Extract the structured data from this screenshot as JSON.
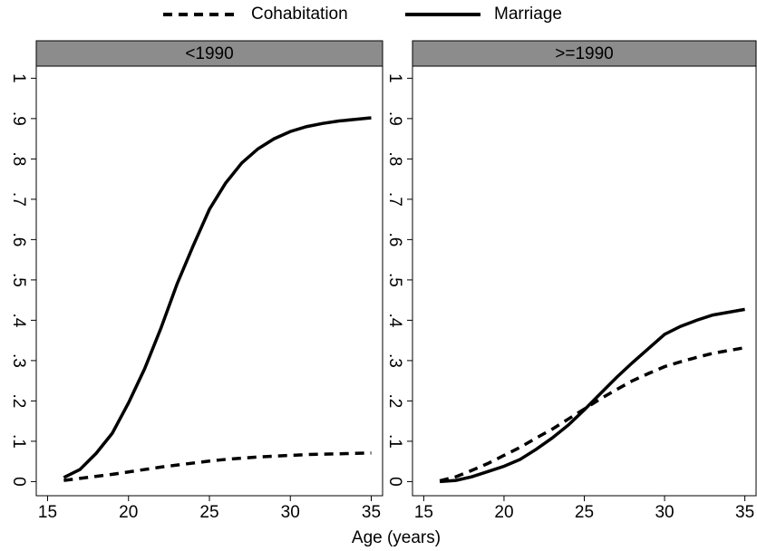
{
  "chart_data": [
    {
      "type": "line",
      "title": "<1990",
      "xlabel": "Age (years)",
      "x": [
        16,
        17,
        18,
        19,
        20,
        21,
        22,
        23,
        24,
        25,
        26,
        27,
        28,
        29,
        30,
        31,
        32,
        33,
        34,
        35
      ],
      "series": [
        {
          "name": "Cohabitation",
          "color": "#000000",
          "style": "dashed",
          "values": [
            0.003,
            0.008,
            0.013,
            0.018,
            0.024,
            0.03,
            0.036,
            0.041,
            0.046,
            0.051,
            0.055,
            0.058,
            0.061,
            0.063,
            0.065,
            0.067,
            0.068,
            0.069,
            0.07,
            0.071
          ]
        },
        {
          "name": "Marriage",
          "color": "#000000",
          "style": "solid",
          "values": [
            0.01,
            0.03,
            0.07,
            0.12,
            0.195,
            0.28,
            0.38,
            0.49,
            0.585,
            0.675,
            0.74,
            0.79,
            0.825,
            0.85,
            0.868,
            0.88,
            0.888,
            0.894,
            0.898,
            0.902
          ]
        }
      ],
      "xlim": [
        14.3,
        35.7
      ],
      "ylim": [
        -0.035,
        1.03
      ],
      "xticks": [
        15,
        20,
        25,
        30,
        35
      ],
      "yticks": [
        0,
        {
          "value": 0.1,
          "label": ".1"
        },
        {
          "value": 0.2,
          "label": ".2"
        },
        {
          "value": 0.3,
          "label": ".3"
        },
        {
          "value": 0.4,
          "label": ".4"
        },
        {
          "value": 0.5,
          "label": ".5"
        },
        {
          "value": 0.6,
          "label": ".6"
        },
        {
          "value": 0.7,
          "label": ".7"
        },
        {
          "value": 0.8,
          "label": ".8"
        },
        {
          "value": 0.9,
          "label": ".9"
        },
        1
      ]
    },
    {
      "type": "line",
      "title": ">=1990",
      "x": [
        16,
        17,
        18,
        19,
        20,
        21,
        22,
        23,
        24,
        25,
        26,
        27,
        28,
        29,
        30,
        31,
        32,
        33,
        34,
        35
      ],
      "series": [
        {
          "name": "Cohabitation",
          "color": "#000000",
          "style": "dashed",
          "values": [
            0.002,
            0.012,
            0.028,
            0.045,
            0.065,
            0.085,
            0.108,
            0.13,
            0.155,
            0.18,
            0.205,
            0.228,
            0.25,
            0.268,
            0.285,
            0.297,
            0.308,
            0.318,
            0.325,
            0.332
          ]
        },
        {
          "name": "Marriage",
          "color": "#000000",
          "style": "solid",
          "values": [
            0.0,
            0.003,
            0.012,
            0.025,
            0.038,
            0.055,
            0.08,
            0.108,
            0.14,
            0.178,
            0.218,
            0.258,
            0.295,
            0.33,
            0.365,
            0.385,
            0.4,
            0.413,
            0.42,
            0.427
          ]
        }
      ],
      "xlim": [
        14.3,
        35.7
      ],
      "ylim": [
        -0.035,
        1.03
      ],
      "xticks": [
        15,
        20,
        25,
        30,
        35
      ],
      "yticks": [
        0,
        {
          "value": 0.1,
          "label": ".1"
        },
        {
          "value": 0.2,
          "label": ".2"
        },
        {
          "value": 0.3,
          "label": ".3"
        },
        {
          "value": 0.4,
          "label": ".4"
        },
        {
          "value": 0.5,
          "label": ".5"
        },
        {
          "value": 0.6,
          "label": ".6"
        },
        {
          "value": 0.7,
          "label": ".7"
        },
        {
          "value": 0.8,
          "label": ".8"
        },
        {
          "value": 0.9,
          "label": ".9"
        },
        1
      ]
    }
  ]
}
